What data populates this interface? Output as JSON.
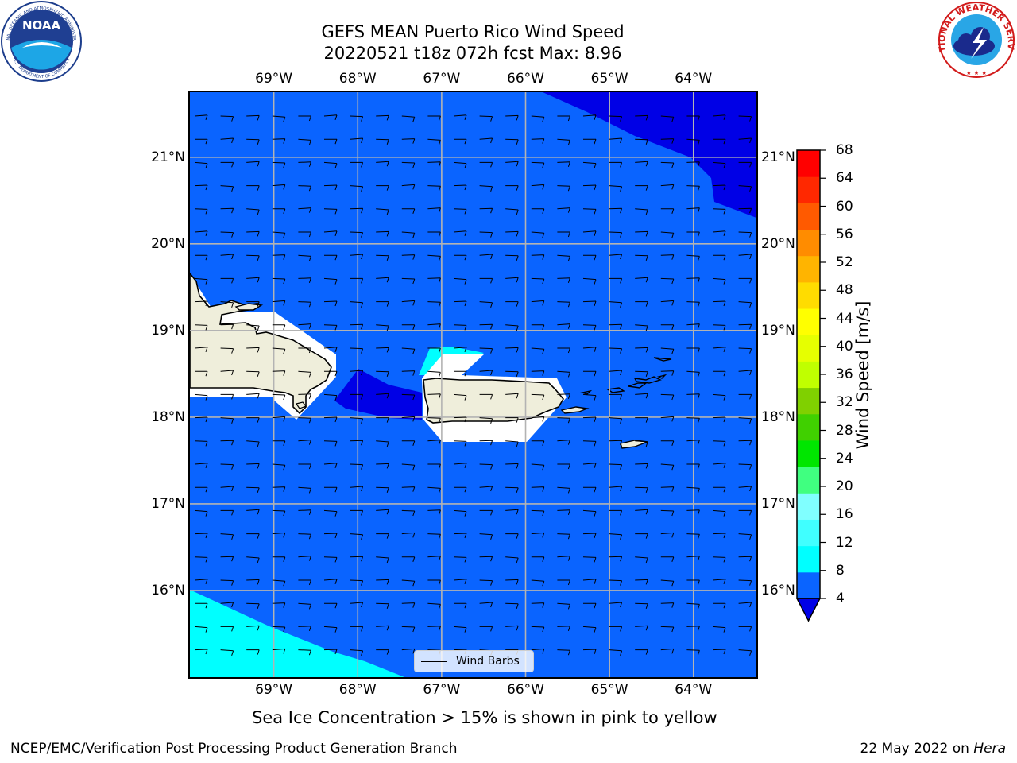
{
  "header": {
    "title_line1": "GEFS MEAN Puerto Rico Wind Speed",
    "title_line2": "20220521 t18z 072h fcst   Max: 8.96"
  },
  "logos": {
    "noaa_text": "NOAA",
    "noaa_ring_top": "NATIONAL OCEANIC AND ATMOSPHERIC ADMINISTRATION",
    "noaa_ring_bottom": "U.S. DEPARTMENT OF COMMERCE",
    "nws_ring": "NATIONAL WEATHER SERVICE"
  },
  "map": {
    "projection_extent_deg": {
      "lon": [
        -70.0,
        -63.25
      ],
      "lat": [
        15.0,
        21.75
      ]
    },
    "lon_labels": [
      "69°W",
      "68°W",
      "67°W",
      "66°W",
      "65°W",
      "64°W"
    ],
    "lat_labels": [
      "16°N",
      "17°N",
      "18°N",
      "19°N",
      "20°N",
      "21°N"
    ],
    "grid": true,
    "colors": {
      "ocean_4_8": "#0a64ff",
      "below_4": "#0000e6",
      "band_8_12": "#00ffff",
      "land": "#efeedb",
      "masked": "#ffffff"
    }
  },
  "legend": {
    "label": "Wind Barbs",
    "placement": "lower-center"
  },
  "colorbar": {
    "label": "Wind Speed [m/s]",
    "ticks": [
      "68",
      "64",
      "60",
      "56",
      "52",
      "48",
      "44",
      "40",
      "36",
      "32",
      "28",
      "24",
      "20",
      "16",
      "12",
      "8",
      "4"
    ],
    "colors": [
      "#0a64ff",
      "#00ffff",
      "#40ffff",
      "#80ffff",
      "#40ff80",
      "#00e600",
      "#40d000",
      "#80d000",
      "#c0ff00",
      "#e6ff00",
      "#ffff00",
      "#ffdc00",
      "#ffb400",
      "#ff8c00",
      "#ff5a00",
      "#ff2800",
      "#ff0000"
    ],
    "under_color": "#0000e6"
  },
  "subtitle": "Sea Ice Concentration > 15% is shown in pink to yellow",
  "footer": {
    "left": "NCEP/EMC/Verification Post Processing Product Generation Branch",
    "right_prefix": "22 May 2022 on ",
    "right_host": "Hera"
  }
}
